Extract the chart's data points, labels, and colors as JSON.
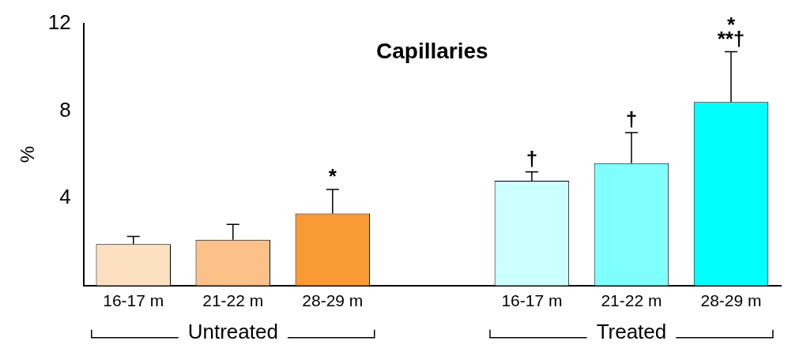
{
  "chart_data": {
    "type": "bar",
    "title": "Capillaries",
    "ylabel": "%",
    "categories": [
      "16-17 m",
      "21-22 m",
      "28-29 m",
      "16-17 m",
      "21-22 m",
      "28-29 m"
    ],
    "values": [
      1.9,
      2.1,
      3.3,
      4.8,
      5.6,
      8.4
    ],
    "colors": [
      "#fde0c0",
      "#fcc189",
      "#f99a35",
      "#ccffff",
      "#80ffff",
      "#00ffff"
    ],
    "errors": [
      0.35,
      0.7,
      1.1,
      0.4,
      1.4,
      2.3
    ],
    "value_labels": [
      null,
      null,
      "*",
      "†",
      "†",
      "*\n**†"
    ],
    "annotations": [
      "Untreated",
      "Treated"
    ],
    "ylim": [
      0,
      12
    ],
    "yticks": [
      4,
      8,
      12
    ],
    "grid": false,
    "legend": false
  }
}
